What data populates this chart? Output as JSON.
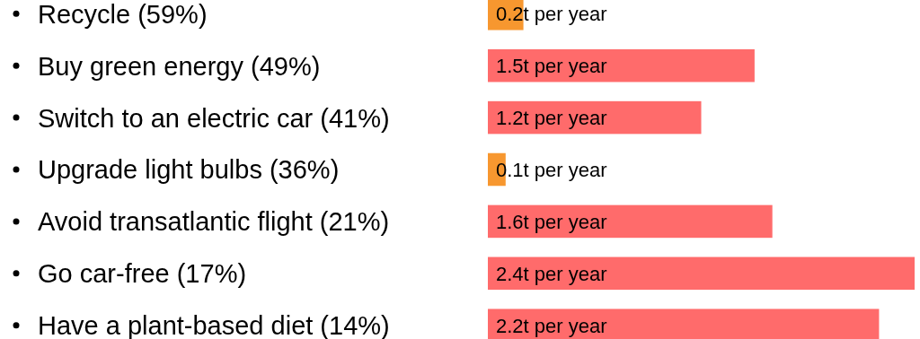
{
  "chart_data": {
    "type": "bar",
    "orientation": "horizontal",
    "categories": [
      "Recycle (59%)",
      "Buy green energy (49%)",
      "Switch to an electric car (41%)",
      "Upgrade light bulbs (36%)",
      "Avoid transatlantic flight (21%)",
      "Go car-free (17%)",
      "Have a plant-based diet (14%)"
    ],
    "values": [
      0.2,
      1.5,
      1.2,
      0.1,
      1.6,
      2.4,
      2.2
    ],
    "colors": [
      "#f7972f",
      "#ff6b6b",
      "#ff6b6b",
      "#f7972f",
      "#ff6b6b",
      "#ff6b6b",
      "#ff6b6b"
    ],
    "value_labels": [
      "0.2t per year",
      "1.5t per year",
      "1.2t per year",
      "0.1t per year",
      "1.6t per year",
      "2.4t per year",
      "2.2t per year"
    ]
  }
}
